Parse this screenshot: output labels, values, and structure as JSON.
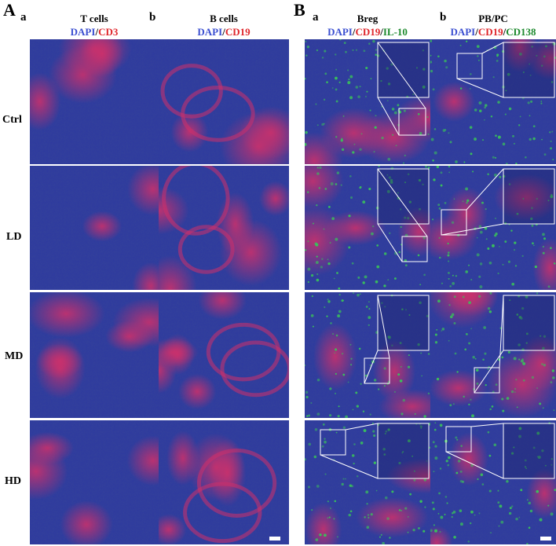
{
  "panels": [
    {
      "letter": "A",
      "columns": [
        {
          "sub": "a",
          "title": "T cells",
          "stain": [
            {
              "text": "DAPI",
              "color": "#3b4fd1"
            },
            {
              "text": "/",
              "color": "#000000"
            },
            {
              "text": "CD3",
              "color": "#e0262b"
            }
          ]
        },
        {
          "sub": "b",
          "title": "B cells",
          "stain": [
            {
              "text": "DAPI",
              "color": "#3b4fd1"
            },
            {
              "text": "/",
              "color": "#000000"
            },
            {
              "text": "CD19",
              "color": "#e0262b"
            }
          ]
        }
      ]
    },
    {
      "letter": "B",
      "columns": [
        {
          "sub": "a",
          "title": "Breg",
          "stain": [
            {
              "text": "DAPI",
              "color": "#3b4fd1"
            },
            {
              "text": "/",
              "color": "#000000"
            },
            {
              "text": "CD19",
              "color": "#e0262b"
            },
            {
              "text": "/",
              "color": "#000000"
            },
            {
              "text": "IL-10",
              "color": "#1e8a2e"
            }
          ]
        },
        {
          "sub": "b",
          "title": "PB/PC",
          "stain": [
            {
              "text": "DAPI",
              "color": "#3b4fd1"
            },
            {
              "text": "/",
              "color": "#000000"
            },
            {
              "text": "CD19",
              "color": "#e0262b"
            },
            {
              "text": "/",
              "color": "#000000"
            },
            {
              "text": "CD138",
              "color": "#1e8a2e"
            }
          ]
        }
      ]
    }
  ],
  "rows": [
    "Ctrl",
    "LD",
    "MD",
    "HD"
  ],
  "colors": {
    "tissue_blue": "#2e3a9e",
    "tissue_dark": "#1a2060",
    "signal_red": "#d0306a",
    "signal_green": "#39c25a",
    "inset_border": "#ffffff"
  }
}
